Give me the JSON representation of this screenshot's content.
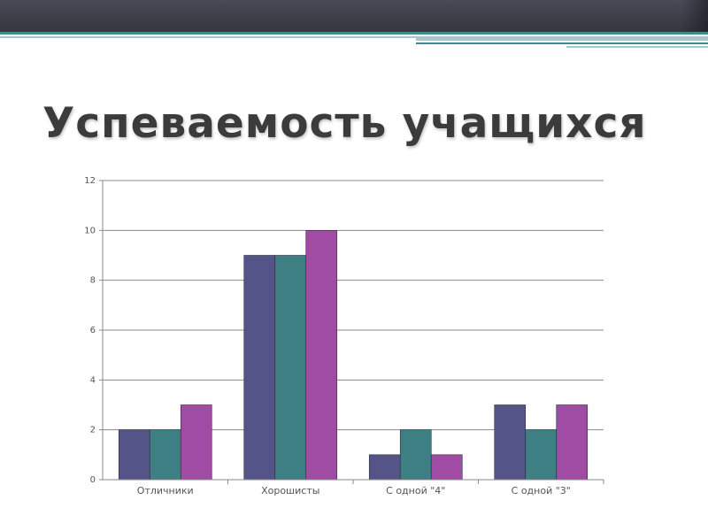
{
  "slide": {
    "title": "Успеваемость учащихся"
  },
  "colors": {
    "top_band": "#3f3f4a",
    "accent_light": "#a6c7cb",
    "accent_dark": "#3f8a90"
  },
  "chart_data": {
    "type": "bar",
    "categories": [
      "Отличники",
      "Хорошисты",
      "С одной \"4\"",
      "С одной \"3\""
    ],
    "series": [
      {
        "values": [
          2,
          9,
          1,
          3
        ],
        "color": "#545488"
      },
      {
        "values": [
          2,
          9,
          2,
          2
        ],
        "color": "#3d7f82"
      },
      {
        "values": [
          3,
          10,
          1,
          3
        ],
        "color": "#a04ba4"
      }
    ],
    "yticks": [
      0,
      2,
      4,
      6,
      8,
      10,
      12
    ],
    "ylim": [
      0,
      12
    ],
    "grid": true,
    "legend": "none"
  }
}
